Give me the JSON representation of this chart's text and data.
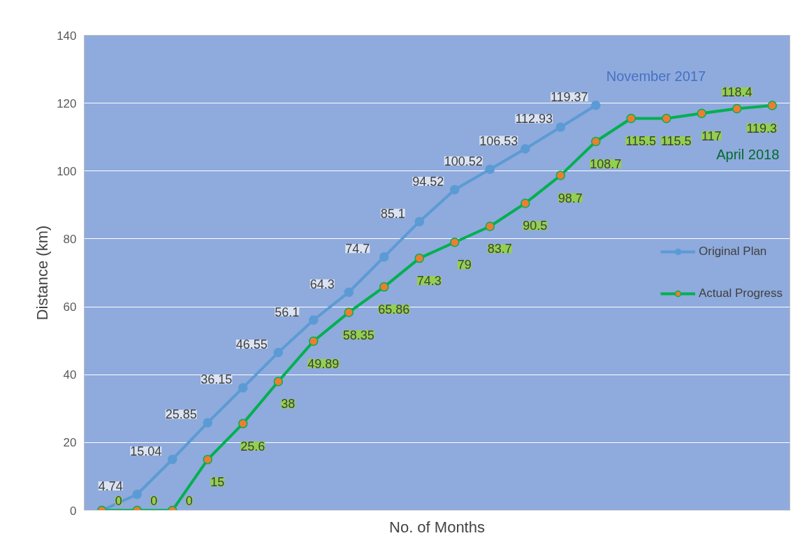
{
  "chart_data": {
    "type": "line",
    "xlabel": "No. of Months",
    "ylabel": "Distance (km)",
    "categories": [
      null,
      null,
      null,
      null,
      null,
      null,
      null,
      null,
      null,
      null,
      null,
      null,
      null,
      null,
      null,
      null,
      null,
      null,
      null,
      null
    ],
    "series": [
      {
        "name": "Original Plan",
        "color": "#5b9bd5",
        "values": [
          0,
          4.74,
          15.04,
          25.85,
          36.15,
          46.55,
          56.1,
          64.3,
          74.7,
          85.1,
          94.52,
          100.52,
          106.53,
          112.93,
          119.37,
          null,
          null,
          null,
          null,
          null
        ],
        "value_labels": [
          null,
          "4.74",
          "15.04",
          "25.85",
          "36.15",
          "46.55",
          "56.1",
          "64.3",
          "74.7",
          "85.1",
          "94.52",
          "100.52",
          "106.53",
          "112.93",
          "119.37",
          null,
          null,
          null,
          null,
          null
        ]
      },
      {
        "name": "Actual Progress",
        "color": "#00b050",
        "values": [
          0,
          0,
          0,
          15,
          25.6,
          38,
          49.89,
          58.35,
          65.86,
          74.3,
          79,
          83.7,
          90.5,
          98.7,
          108.7,
          115.5,
          115.5,
          117,
          118.4,
          119.3
        ],
        "value_labels": [
          "0",
          "0",
          "0",
          "15",
          "25.6",
          "38",
          "49.89",
          "58.35",
          "65.86",
          "74.3",
          "79",
          "83.7",
          "90.5",
          "98.7",
          "108.7",
          "115.5",
          "115.5",
          "117",
          "118.4",
          "119.3"
        ]
      }
    ],
    "annotations": [
      "November 2017",
      "April 2018"
    ],
    "ylim": [
      0,
      140
    ],
    "yticks": [
      0,
      20,
      40,
      60,
      80,
      100,
      120,
      140
    ],
    "grid": "y",
    "legend": "right",
    "marker": "circle",
    "line_style": "solid"
  }
}
